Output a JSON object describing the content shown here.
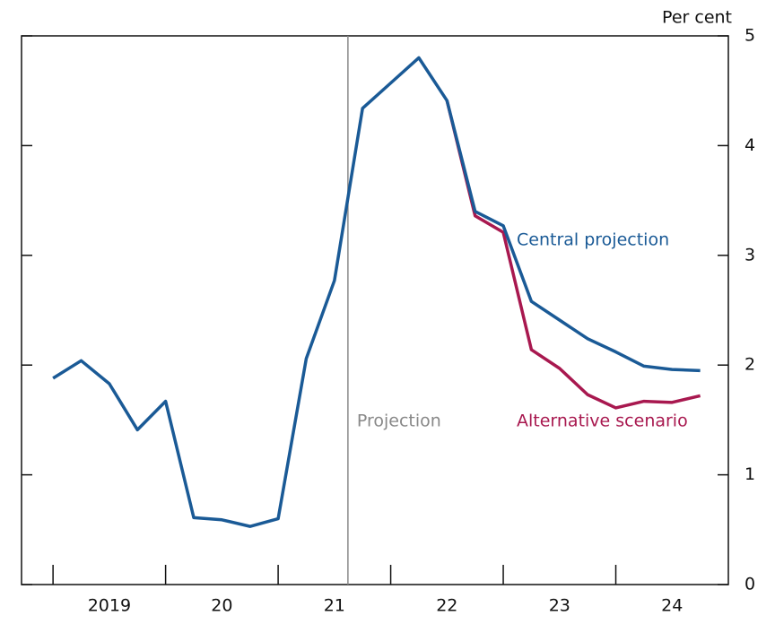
{
  "chart_data": {
    "type": "line",
    "y_axis_label": "Per cent",
    "x": [
      2019,
      2019.25,
      2019.5,
      2019.75,
      2020,
      2020.25,
      2020.5,
      2020.75,
      2021,
      2021.25,
      2021.5,
      2021.75,
      2022,
      2022.25,
      2022.5,
      2022.75,
      2023,
      2023.25,
      2023.5,
      2023.75,
      2024,
      2024.25,
      2024.5,
      2024.75
    ],
    "series": [
      {
        "name": "Alternative scenario",
        "color": "#a8184f",
        "values": [
          null,
          null,
          null,
          null,
          null,
          null,
          null,
          null,
          null,
          null,
          null,
          null,
          null,
          null,
          4.41,
          3.36,
          3.21,
          2.14,
          1.97,
          1.73,
          1.61,
          1.67,
          1.66,
          1.72
        ]
      },
      {
        "name": "Central projection",
        "color": "#1a5a96",
        "values": [
          1.88,
          2.04,
          1.83,
          1.41,
          1.67,
          0.61,
          0.59,
          0.53,
          0.6,
          2.06,
          2.77,
          4.34,
          4.57,
          4.8,
          4.41,
          3.4,
          3.27,
          2.58,
          2.41,
          2.24,
          2.12,
          1.99,
          1.96,
          1.95
        ]
      }
    ],
    "xlim": [
      2018.72,
      2025.0
    ],
    "xtick_marks": [
      2019,
      2020,
      2021,
      2022,
      2023,
      2024
    ],
    "xticks": [
      {
        "value": 2019.5,
        "label": "2019"
      },
      {
        "value": 2020.5,
        "label": "20"
      },
      {
        "value": 2021.5,
        "label": "21"
      },
      {
        "value": 2022.5,
        "label": "22"
      },
      {
        "value": 2023.5,
        "label": "23"
      },
      {
        "value": 2024.5,
        "label": "24"
      }
    ],
    "ylim": [
      0,
      5
    ],
    "yticks": [
      0,
      1,
      2,
      3,
      4,
      5
    ],
    "projection_start": {
      "x": 2021.62,
      "label": "Projection"
    }
  }
}
